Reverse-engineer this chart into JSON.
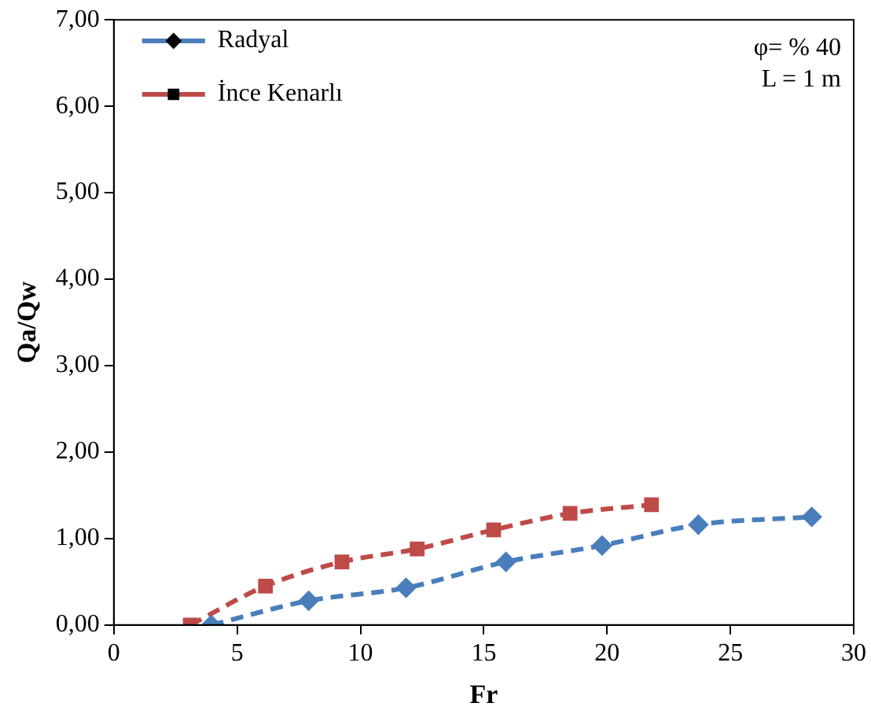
{
  "chart_data": {
    "type": "line",
    "xlabel": "Fr",
    "ylabel": "Qa/Qw",
    "series": [
      {
        "name": "Radyal",
        "color": "#4a7ebb",
        "marker": "diamond",
        "x": [
          3.95,
          7.9,
          11.85,
          15.9,
          19.8,
          23.7,
          28.3
        ],
        "values": [
          0,
          0.28,
          0.43,
          0.73,
          0.92,
          1.16,
          1.25
        ]
      },
      {
        "name": "İnce Kenarlı",
        "color": "#be4b48",
        "marker": "square",
        "x": [
          3.1,
          6.15,
          9.25,
          12.3,
          15.4,
          18.5,
          21.8
        ],
        "values": [
          0,
          0.45,
          0.73,
          0.88,
          1.1,
          1.29,
          1.39
        ]
      }
    ],
    "xlim": [
      0,
      30
    ],
    "xticks": [
      0,
      5,
      10,
      15,
      20,
      25,
      30
    ],
    "ylim": [
      0,
      7
    ],
    "yticks": [
      {
        "value": 0,
        "label": "0,00"
      },
      {
        "value": 1,
        "label": "1,00"
      },
      {
        "value": 2,
        "label": "2,00"
      },
      {
        "value": 3,
        "label": "3,00"
      },
      {
        "value": 4,
        "label": "4,00"
      },
      {
        "value": 5,
        "label": "5,00"
      },
      {
        "value": 6,
        "label": "6,00"
      },
      {
        "value": 7,
        "label": "7,00"
      }
    ],
    "line_style": "dashed",
    "legend": "top left",
    "grid": false,
    "annotations": [
      "φ= % 40",
      "L = 1 m"
    ]
  }
}
